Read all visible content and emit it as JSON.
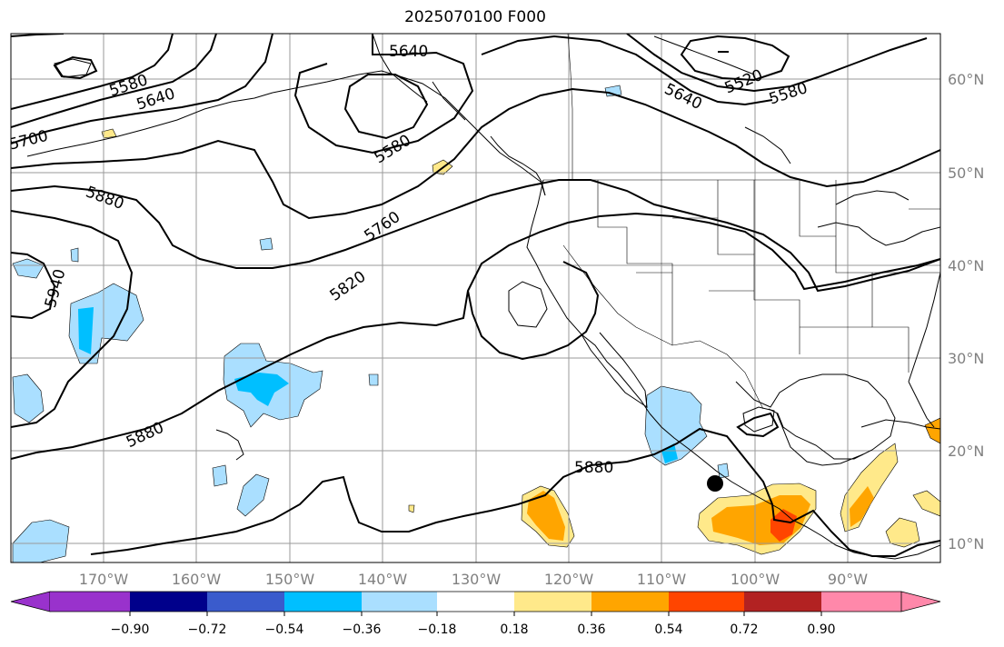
{
  "title": "2025070100 F000",
  "longitude_labels": [
    "170°W",
    "160°W",
    "150°W",
    "140°W",
    "130°W",
    "120°W",
    "110°W",
    "100°W",
    "90°W"
  ],
  "latitude_labels": [
    "60°N",
    "50°N",
    "40°N",
    "30°N",
    "20°N",
    "10°N"
  ],
  "contour_labels": [
    "5640",
    "5580",
    "5640",
    "5700",
    "5580",
    "5880",
    "5760",
    "5820",
    "5940",
    "5880",
    "5880",
    "5640",
    "5520",
    "5580"
  ],
  "colorbar": {
    "colors": [
      "#9932cc",
      "#00008b",
      "#3a5bcc",
      "#00bfff",
      "#aadfff",
      "#ffffff",
      "#ffe98a",
      "#ffa500",
      "#ff4500",
      "#b22222",
      "#ff88aa"
    ],
    "tick_labels": [
      "−0.90",
      "−0.72",
      "−0.54",
      "−0.36",
      "−0.18",
      "0.18",
      "0.36",
      "0.54",
      "0.72",
      "0.90"
    ]
  },
  "colors": {
    "grid": "#9a9a9a",
    "axis_label": "#808080",
    "contour": "#000000"
  }
}
